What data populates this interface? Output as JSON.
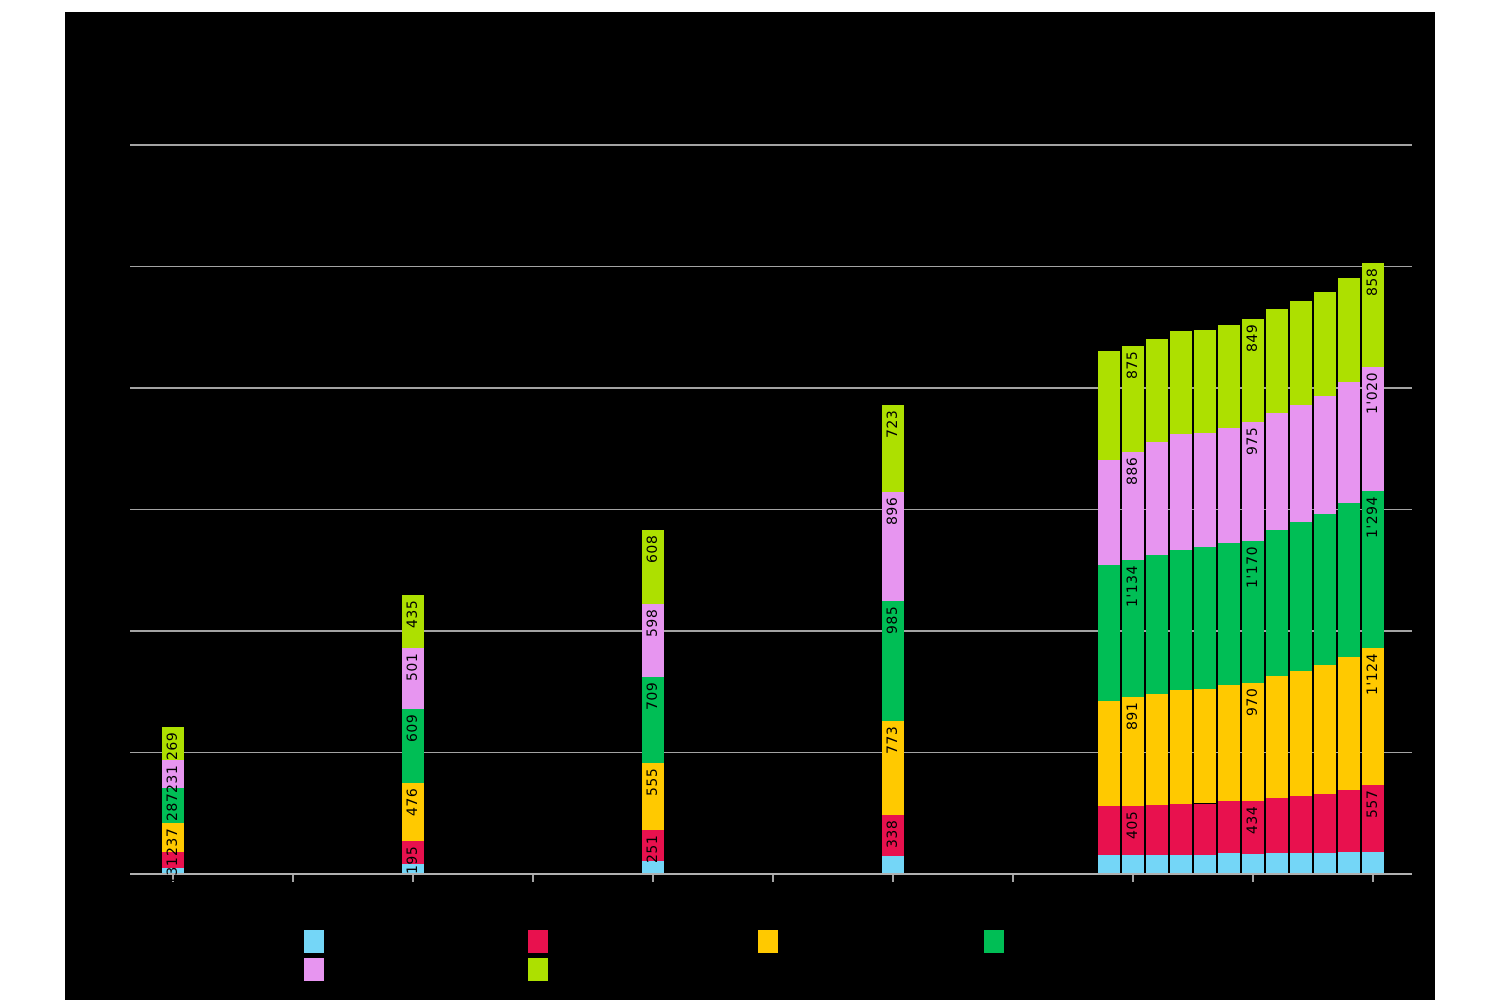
{
  "chart_data": {
    "type": "bar",
    "stacked": true,
    "background": "#000000",
    "page_background": "#ffffff",
    "grid": true,
    "grid_color": "#a3a3a3",
    "label_color": "#000000",
    "ylim": [
      0,
      6000
    ],
    "gridline_step": 1000,
    "y_tick_labels_visible": false,
    "x_tick_labels_visible": false,
    "number_format": "thousands separated by apostrophe (1'134)",
    "series": [
      {
        "key": "series-cyan",
        "color": "#74D6F7"
      },
      {
        "key": "series-red",
        "color": "#E8114E"
      },
      {
        "key": "series-yellow",
        "color": "#FFC900"
      },
      {
        "key": "series-green",
        "color": "#00BE55"
      },
      {
        "key": "series-violet",
        "color": "#E795F0"
      },
      {
        "key": "series-yellowgreen",
        "color": "#ADE000"
      }
    ],
    "bars": [
      {
        "x": 173,
        "values": [
          45,
          131,
          237,
          287,
          231,
          269
        ],
        "labels": [
          "",
          "131",
          "237",
          "287",
          "231",
          "269"
        ]
      },
      {
        "x": 413,
        "values": [
          70,
          195,
          476,
          609,
          501,
          435
        ],
        "labels": [
          "",
          "195",
          "476",
          "609",
          "501",
          "435"
        ]
      },
      {
        "x": 653,
        "values": [
          100,
          251,
          555,
          709,
          598,
          608
        ],
        "labels": [
          "",
          "251",
          "555",
          "709",
          "598",
          "608"
        ]
      },
      {
        "x": 893,
        "values": [
          140,
          338,
          773,
          985,
          896,
          723
        ],
        "labels": [
          "",
          "338",
          "773",
          "985",
          "896",
          "723"
        ]
      },
      {
        "x": 1109,
        "values": [
          148,
          400,
          870,
          1120,
          865,
          890
        ],
        "labels": [
          "",
          "",
          "",
          "",
          "",
          ""
        ]
      },
      {
        "x": 1133,
        "values": [
          150,
          405,
          891,
          1134,
          886,
          875
        ],
        "labels": [
          "",
          "405",
          "891",
          "1'134",
          "886",
          "875"
        ]
      },
      {
        "x": 1157,
        "values": [
          150,
          410,
          915,
          1145,
          925,
          850
        ],
        "labels": [
          "",
          "",
          "",
          "",
          "",
          ""
        ]
      },
      {
        "x": 1181,
        "values": [
          150,
          418,
          935,
          1158,
          950,
          850
        ],
        "labels": [
          "",
          "",
          "",
          "",
          "",
          ""
        ]
      },
      {
        "x": 1205,
        "values": [
          150,
          422,
          945,
          1163,
          940,
          850
        ],
        "labels": [
          "",
          "",
          "",
          "",
          "",
          ""
        ]
      },
      {
        "x": 1229,
        "values": [
          165,
          428,
          955,
          1168,
          948,
          850
        ],
        "labels": [
          "",
          "",
          "",
          "",
          "",
          ""
        ]
      },
      {
        "x": 1253,
        "values": [
          160,
          434,
          970,
          1170,
          975,
          849
        ],
        "labels": [
          "",
          "434",
          "970",
          "1'170",
          "975",
          "849"
        ]
      },
      {
        "x": 1277,
        "values": [
          165,
          455,
          1005,
          1200,
          965,
          855
        ],
        "labels": [
          "",
          "",
          "",
          "",
          "",
          ""
        ]
      },
      {
        "x": 1301,
        "values": [
          168,
          468,
          1030,
          1220,
          965,
          855
        ],
        "labels": [
          "",
          "",
          "",
          "",
          "",
          ""
        ]
      },
      {
        "x": 1325,
        "values": [
          168,
          480,
          1060,
          1245,
          970,
          858
        ],
        "labels": [
          "",
          "",
          "",
          "",
          "",
          ""
        ]
      },
      {
        "x": 1349,
        "values": [
          170,
          515,
          1090,
          1268,
          1000,
          856
        ],
        "labels": [
          "",
          "",
          "",
          "",
          "",
          ""
        ]
      },
      {
        "x": 1373,
        "values": [
          170,
          557,
          1124,
          1294,
          1020,
          858
        ],
        "labels": [
          "",
          "557",
          "1'124",
          "1'294",
          "1'020",
          "858"
        ]
      }
    ],
    "x_ticks": [
      173,
      293,
      413,
      533,
      653,
      773,
      893,
      1013,
      1133,
      1253,
      1373
    ]
  },
  "legend": {
    "rows": [
      [
        "series-cyan",
        "series-red",
        "series-yellow",
        "series-green"
      ],
      [
        "series-violet",
        "series-yellowgreen"
      ]
    ]
  }
}
